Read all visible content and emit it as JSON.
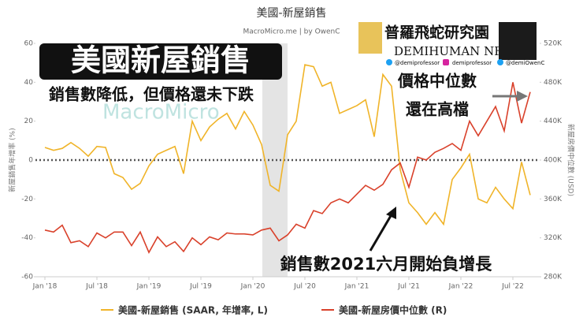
{
  "chart_data": {
    "type": "line",
    "title": "美國-新屋銷售",
    "subtitle": "MacroMicro.me | by OwenC",
    "watermark": "MacroMicro",
    "y_label": "新屋銷售年增率 (%)",
    "y2_label": "新屋房價中位數 (USD)",
    "annotations": {
      "headline": "美國新屋銷售",
      "note": "銷售數降低，但價格還未下跌",
      "price_1": "價格中位數",
      "price_2": "還在高檔",
      "sales": "銷售數2021六月開始負增長"
    },
    "branding": {
      "name": "普羅飛蛇研究園",
      "project": "DEMIHUMAN NFT",
      "twitter_1": "@demiprofessor",
      "instagram": "demiprofessor",
      "twitter_2": "@demiOwenC"
    },
    "categories": [
      "Jan '18",
      null,
      null,
      null,
      null,
      null,
      "Jul '18",
      null,
      null,
      null,
      null,
      null,
      "Jan '19",
      null,
      null,
      null,
      null,
      null,
      "Jul '19",
      null,
      null,
      null,
      null,
      null,
      "Jan '20",
      null,
      null,
      null,
      null,
      null,
      "Jul '20",
      null,
      null,
      null,
      null,
      null,
      "Jan '21",
      null,
      null,
      null,
      null,
      null,
      "Jul '21",
      null,
      null,
      null,
      null,
      null,
      "Jan '22",
      null,
      null,
      null,
      null,
      null,
      "Jul '22",
      null,
      null
    ],
    "series": [
      {
        "name": "美國-新屋銷售 (SAAR, 年增率, L)",
        "color": "#f0b429",
        "axis": "y",
        "values": [
          6.5,
          5,
          6,
          9,
          6,
          2,
          7,
          6.5,
          -7,
          -9,
          -15,
          -12,
          -3,
          3,
          5,
          7,
          -7,
          20,
          10,
          17,
          21,
          24,
          16,
          25,
          18,
          8,
          -13,
          -16,
          13,
          20,
          49,
          48,
          38,
          40,
          24,
          26,
          28,
          31,
          12,
          44,
          38,
          -5,
          -22,
          -27,
          -33,
          -27,
          -33,
          -10,
          -4,
          3,
          -20,
          -22,
          -14,
          -20,
          -25,
          -1,
          -18
        ]
      },
      {
        "name": "美國-新屋房價中位數 (R)",
        "color": "#d9412b",
        "axis": "y2",
        "values": [
          328000,
          326000,
          333000,
          315000,
          317000,
          311000,
          325000,
          320000,
          326000,
          326000,
          312000,
          326000,
          305000,
          321000,
          311000,
          316000,
          306000,
          320000,
          313000,
          321000,
          318000,
          325000,
          324000,
          324000,
          323000,
          328000,
          330000,
          317000,
          323000,
          334000,
          330000,
          348000,
          345000,
          356000,
          360000,
          356000,
          365000,
          374000,
          369000,
          375000,
          390000,
          397000,
          372000,
          403000,
          400000,
          408000,
          412000,
          417000,
          410000,
          440000,
          425000,
          440000,
          455000,
          430000,
          480000,
          438000,
          470000
        ]
      }
    ],
    "ylim": [
      -60,
      60
    ],
    "yticks": [
      -60,
      -40,
      -20,
      0,
      20,
      40,
      60
    ],
    "y2lim": [
      280000,
      520000
    ],
    "y2ticks": [
      {
        "value": 280000,
        "label": "280K"
      },
      {
        "value": 320000,
        "label": "320K"
      },
      {
        "value": 360000,
        "label": "360K"
      },
      {
        "value": 400000,
        "label": "400K"
      },
      {
        "value": 440000,
        "label": "440K"
      },
      {
        "value": 480000,
        "label": "480K"
      },
      {
        "value": 520000,
        "label": "520K"
      }
    ]
  }
}
